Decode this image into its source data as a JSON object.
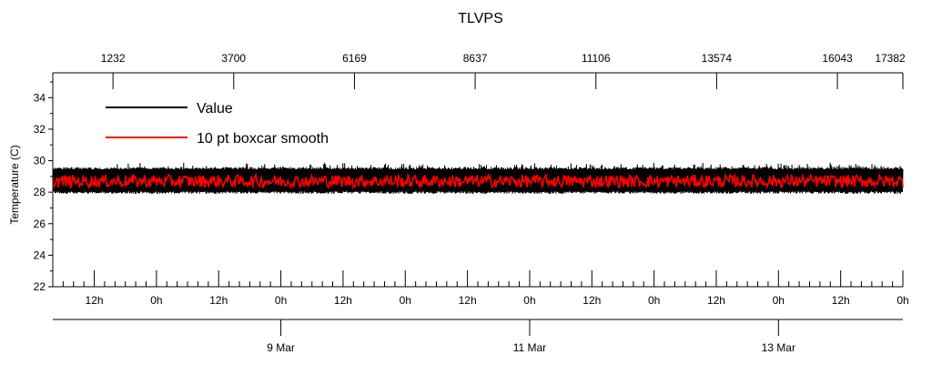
{
  "chart_data": {
    "type": "line",
    "title": "TLVPS",
    "ylabel": "Temperature (C)",
    "ylim": [
      22,
      35
    ],
    "yticks": [
      22,
      24,
      26,
      28,
      30,
      32,
      34
    ],
    "top_axis": {
      "range": [
        1,
        17382
      ],
      "tick_values": [
        1232,
        3700,
        6169,
        8637,
        11106,
        13574,
        16043,
        17382
      ],
      "tick_labels": [
        "1232",
        "3700",
        "6169",
        "8637",
        "11106",
        "13574",
        "16043",
        "17382"
      ]
    },
    "time_axis": {
      "start": "2016-03-07T04:00",
      "end": "2016-03-14T00:00",
      "hour_tick_labels": [
        "12h",
        "0h",
        "12h",
        "0h",
        "12h",
        "0h",
        "12h",
        "0h",
        "12h",
        "0h",
        "12h",
        "0h",
        "12h",
        "0h"
      ],
      "hour_tick_times": [
        "2016-03-07T12:00",
        "2016-03-08T00:00",
        "2016-03-08T12:00",
        "2016-03-09T00:00",
        "2016-03-09T12:00",
        "2016-03-10T00:00",
        "2016-03-10T12:00",
        "2016-03-11T00:00",
        "2016-03-11T12:00",
        "2016-03-12T00:00",
        "2016-03-12T12:00",
        "2016-03-13T00:00",
        "2016-03-13T12:00",
        "2016-03-14T00:00"
      ],
      "date_tick_labels": [
        "9 Mar",
        "11 Mar",
        "13 Mar"
      ],
      "date_tick_times": [
        "2016-03-09T00:00",
        "2016-03-11T00:00",
        "2016-03-13T00:00"
      ]
    },
    "series": [
      {
        "name": "Value",
        "color": "#000000",
        "mean": 28.7,
        "low": 27.9,
        "high": 29.6,
        "high_max": 29.9
      },
      {
        "name": "10 pt boxcar smooth",
        "color": "#ff0000",
        "mean": 28.7,
        "low": 28.3,
        "high": 29.1
      }
    ],
    "legend": {
      "placement": "top-left"
    },
    "grid": false
  }
}
